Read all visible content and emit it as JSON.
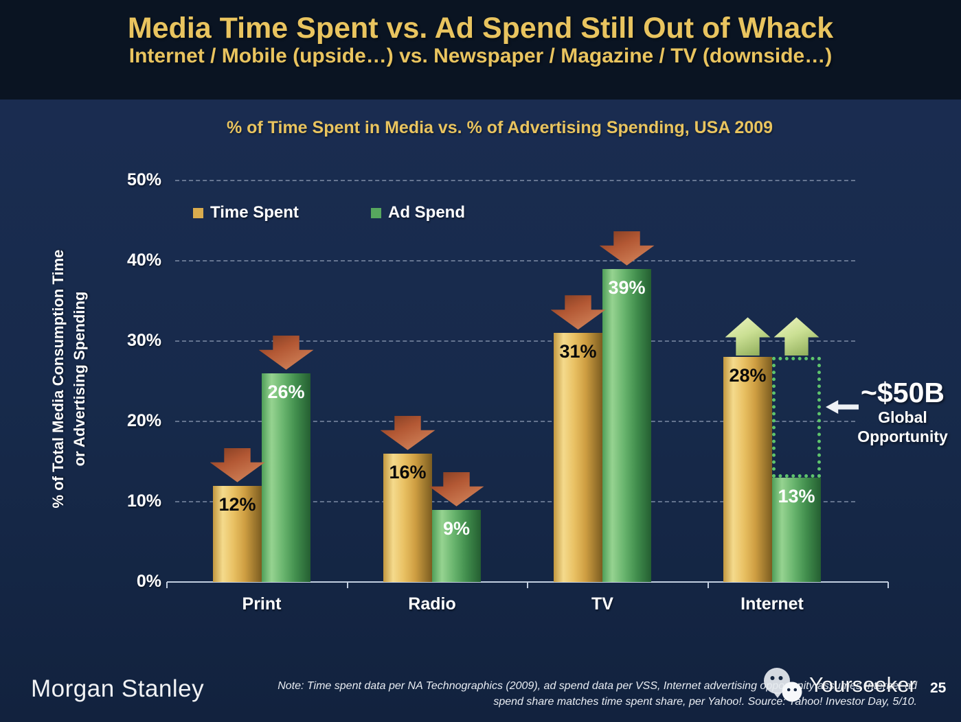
{
  "slide": {
    "title": "Media Time Spent vs. Ad Spend Still Out of Whack",
    "subtitle": "Internet / Mobile (upside…) vs. Newspaper / Magazine / TV (downside…)"
  },
  "chart_data": {
    "type": "bar",
    "title": "% of Time Spent in Media vs. % of Advertising Spending, USA 2009",
    "ylabel_line1": "% of Total Media Consumption Time",
    "ylabel_line2": "or Advertising Spending",
    "categories": [
      "Print",
      "Radio",
      "TV",
      "Internet"
    ],
    "series": [
      {
        "name": "Time Spent",
        "color": "#d9ac4e",
        "label_color": "#0a0a0a",
        "values": [
          12,
          16,
          31,
          28
        ]
      },
      {
        "name": "Ad Spend",
        "color": "#57a75e",
        "label_color": "#ffffff",
        "values": [
          26,
          9,
          39,
          13
        ]
      }
    ],
    "value_suffix": "%",
    "trends": [
      "down",
      "down",
      "down",
      "up"
    ],
    "trend_colors": {
      "down": "#c06a43",
      "up": "#c9df94"
    },
    "yticks": [
      {
        "label": "50%",
        "value": 50
      },
      {
        "label": "40%",
        "value": 40
      },
      {
        "label": "30%",
        "value": 30
      },
      {
        "label": "20%",
        "value": 20
      },
      {
        "label": "10%",
        "value": 10
      },
      {
        "label": "0%",
        "value": 0
      }
    ],
    "ylim": [
      0,
      50
    ],
    "grid": "horizontal-dashed",
    "legend_position": "top-left",
    "annotation": {
      "amount": "~$50B",
      "label_line1": "Global",
      "label_line2": "Opportunity",
      "box_category": "Internet",
      "box_series": "Ad Spend",
      "box_from_value": 13,
      "box_to_value": 28
    }
  },
  "footer": {
    "brand": "Morgan Stanley",
    "note_line1": "Note: Time spent data per NA Technographics (2009), ad spend data per VSS, Internet advertising opportunity assumes Internet ad",
    "note_line2": "spend share matches time spent share, per Yahoo!. Source: Yahoo! Investor Day, 5/10.",
    "watermark": "Yourseeker",
    "page_number": "25"
  }
}
